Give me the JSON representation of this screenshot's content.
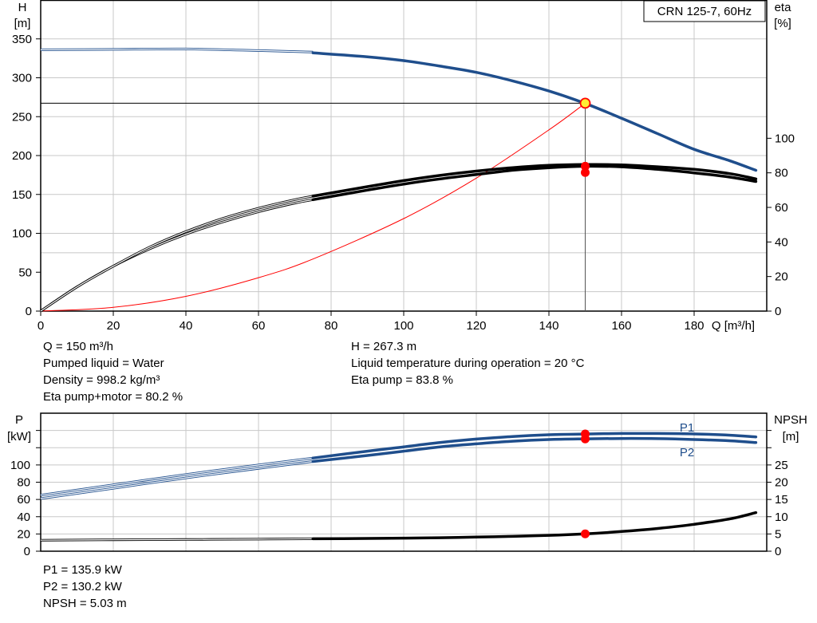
{
  "colors": {
    "head": "#1f4e8c",
    "power": "#1f4e8c",
    "efficiency": "#000000",
    "npsh": "#000000",
    "operating_point": "#ff0000",
    "guide_line": "#ff0000"
  },
  "chart_data": [
    {
      "type": "line",
      "title": "CRN 125-7, 60Hz",
      "y_label_left": [
        "H",
        "[m]"
      ],
      "y_label_right": [
        "eta",
        "[%]"
      ],
      "x_label": "Q [m³/h]",
      "xlim": [
        0,
        200
      ],
      "ylim_left": [
        0,
        400
      ],
      "ylim_right": [
        0,
        180
      ],
      "x_ticks": [
        0,
        20,
        40,
        60,
        80,
        100,
        120,
        140,
        160,
        180
      ],
      "y_ticks_left": [
        0,
        50,
        100,
        150,
        200,
        250,
        300,
        350
      ],
      "y_ticks_right": [
        0,
        20,
        40,
        60,
        80,
        100
      ],
      "operating_point": {
        "q": 150,
        "h": 267.3
      },
      "series": [
        {
          "axis": "left",
          "thin_x": [
            0,
            20,
            40,
            60,
            75
          ],
          "thin_y": [
            336,
            336.5,
            337,
            335,
            333
          ],
          "x": [
            75,
            90,
            100,
            110,
            120,
            130,
            140,
            150,
            160,
            170,
            180,
            190,
            197
          ],
          "y": [
            332,
            327,
            322,
            315,
            307,
            296,
            283,
            267,
            248,
            228,
            208,
            193,
            181
          ]
        },
        {
          "axis": "right",
          "thin_x": [
            0,
            10,
            20,
            30,
            40,
            50,
            60,
            70,
            75
          ],
          "thin_y": [
            0,
            14,
            26,
            36,
            44.5,
            51.5,
            57.5,
            62.5,
            64.5
          ],
          "x": [
            75,
            90,
            100,
            110,
            120,
            130,
            140,
            150,
            160,
            170,
            180,
            190,
            197
          ],
          "y": [
            64.5,
            70,
            73.5,
            76.5,
            79,
            81.5,
            83,
            83.8,
            83.5,
            82,
            80,
            77.5,
            75
          ]
        },
        {
          "axis": "right",
          "thin_x": [
            0,
            10,
            20,
            30,
            40,
            50,
            60,
            70,
            75
          ],
          "thin_y": [
            0,
            14,
            26,
            37,
            46,
            53.5,
            59.5,
            64.5,
            66.5
          ],
          "x": [
            75,
            90,
            100,
            110,
            120,
            130,
            140,
            150,
            160,
            170,
            180,
            190,
            197
          ],
          "y": [
            66.5,
            72,
            75.5,
            78.5,
            81,
            83,
            84.3,
            84.8,
            84.6,
            83.5,
            82,
            79.5,
            76.5
          ]
        }
      ],
      "guide_curve": {
        "x": [
          0,
          20,
          40,
          60,
          75,
          100,
          120,
          140,
          150
        ],
        "y": [
          0,
          4.8,
          19,
          43,
          67,
          119,
          171,
          233,
          267.3
        ]
      }
    },
    {
      "type": "line",
      "y_label_left": [
        "P",
        "[kW]"
      ],
      "y_label_right": [
        "NPSH",
        "[m]"
      ],
      "ylim_left": [
        0,
        160
      ],
      "ylim_right": [
        0,
        40
      ],
      "y_ticks_left": [
        0,
        20,
        40,
        60,
        80,
        100
      ],
      "y_ticks_right": [
        0,
        5,
        10,
        15,
        20,
        25
      ],
      "series_labels": {
        "p1": "P1",
        "p2": "P2"
      },
      "operating_point": {
        "q": 150,
        "p1": 135.9,
        "p2": 130.2,
        "npsh": 5.03
      },
      "series": [
        {
          "name": "P1",
          "axis": "left",
          "thin_x": [
            0,
            20,
            40,
            60,
            75
          ],
          "thin_y": [
            65,
            77,
            89,
            100,
            108
          ],
          "x": [
            75,
            90,
            100,
            110,
            120,
            130,
            140,
            150,
            160,
            170,
            180,
            190,
            197
          ],
          "y": [
            108,
            116,
            121,
            126,
            130,
            133,
            135,
            135.9,
            136.5,
            136.5,
            136,
            134.5,
            132.5
          ]
        },
        {
          "name": "P2",
          "axis": "left",
          "thin_x": [
            0,
            20,
            40,
            60,
            75
          ],
          "thin_y": [
            61,
            73,
            85,
            96,
            104
          ],
          "x": [
            75,
            90,
            100,
            110,
            120,
            130,
            140,
            150,
            160,
            170,
            180,
            190,
            197
          ],
          "y": [
            104,
            111,
            116,
            121,
            124.5,
            127.5,
            129.5,
            130.2,
            130.7,
            130.5,
            129.5,
            128,
            126
          ]
        },
        {
          "name": "NPSH",
          "axis": "right",
          "thin_x": [
            0,
            20,
            40,
            60,
            75
          ],
          "thin_y": [
            3.2,
            3.3,
            3.4,
            3.5,
            3.6
          ],
          "x": [
            75,
            90,
            100,
            110,
            120,
            130,
            140,
            150,
            160,
            170,
            180,
            190,
            197
          ],
          "y": [
            3.6,
            3.7,
            3.8,
            3.9,
            4.1,
            4.3,
            4.6,
            5.03,
            5.7,
            6.6,
            7.8,
            9.4,
            11.2
          ]
        }
      ]
    }
  ],
  "info_top_left": [
    "Q = 150 m³/h",
    "Pumped liquid = Water",
    "Density = 998.2 kg/m³",
    "Eta pump+motor = 80.2 %"
  ],
  "info_top_right": [
    "H = 267.3 m",
    "Liquid temperature during operation = 20 °C",
    "Eta pump = 83.8 %"
  ],
  "info_bottom": [
    "P1 = 135.9 kW",
    "P2 = 130.2 kW",
    "NPSH = 5.03 m"
  ]
}
